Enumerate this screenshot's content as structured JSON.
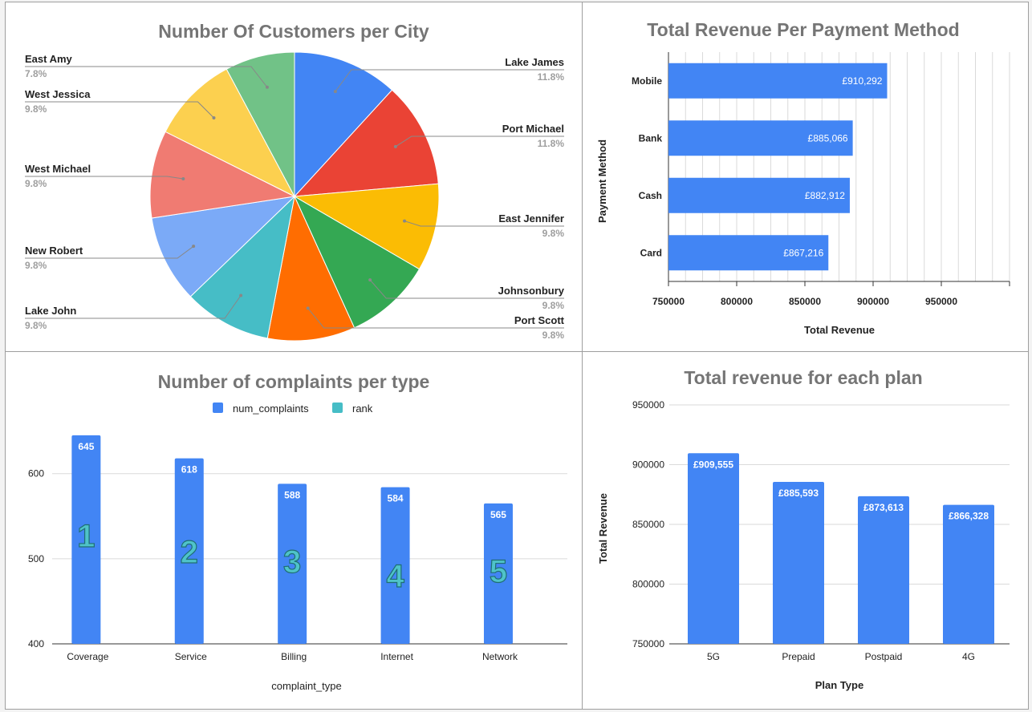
{
  "colors": {
    "blue": "#4285f4",
    "teal": "#46bdc6",
    "pie": [
      "#4285f4",
      "#ea4335",
      "#fbbc04",
      "#34a853",
      "#ff6d01",
      "#46bdc6",
      "#7baaf7",
      "#f07b72",
      "#fcd04f",
      "#71c287"
    ]
  },
  "chart_data": [
    {
      "type": "pie",
      "title": "Number Of Customers per City",
      "slices": [
        {
          "label": "Lake James",
          "percent_label": "11.8%",
          "value": 11.8
        },
        {
          "label": "Port Michael",
          "percent_label": "11.8%",
          "value": 11.8
        },
        {
          "label": "East Jennifer",
          "percent_label": "9.8%",
          "value": 9.8
        },
        {
          "label": "Johnsonbury",
          "percent_label": "9.8%",
          "value": 9.8
        },
        {
          "label": "Port Scott",
          "percent_label": "9.8%",
          "value": 9.8
        },
        {
          "label": "Lake John",
          "percent_label": "9.8%",
          "value": 9.8
        },
        {
          "label": "New Robert",
          "percent_label": "9.8%",
          "value": 9.8
        },
        {
          "label": "West Michael",
          "percent_label": "9.8%",
          "value": 9.8
        },
        {
          "label": "West Jessica",
          "percent_label": "9.8%",
          "value": 9.8
        },
        {
          "label": "East Amy",
          "percent_label": "7.8%",
          "value": 7.8
        }
      ]
    },
    {
      "type": "bar",
      "orientation": "horizontal",
      "title": "Total Revenue Per Payment Method",
      "xlabel": "Total Revenue",
      "ylabel": "Payment Method",
      "xlim": [
        750000,
        1000000
      ],
      "xticks": [
        "750000",
        "800000",
        "850000",
        "900000",
        "950000"
      ],
      "categories": [
        "Mobile",
        "Bank",
        "Cash",
        "Card"
      ],
      "values": [
        910292,
        885066,
        882912,
        867216
      ],
      "data_labels": [
        "£910,292",
        "£885,066",
        "£882,912",
        "£867,216"
      ]
    },
    {
      "type": "bar",
      "title": "Number of complaints per type",
      "xlabel": "complaint_type",
      "ylabel": "",
      "ylim": [
        400,
        660
      ],
      "yticks": [
        "400",
        "500",
        "600"
      ],
      "legend": "top",
      "series": [
        {
          "name": "num_complaints",
          "values": [
            645,
            618,
            588,
            584,
            565
          ]
        },
        {
          "name": "rank",
          "values": [
            1,
            2,
            3,
            4,
            5
          ]
        }
      ],
      "categories": [
        "Coverage",
        "Service",
        "Billing",
        "Internet",
        "Network"
      ],
      "data_labels": [
        "645",
        "618",
        "588",
        "584",
        "565"
      ],
      "rank_labels": [
        "1",
        "2",
        "3",
        "4",
        "5"
      ]
    },
    {
      "type": "bar",
      "title": "Total revenue for each plan",
      "xlabel": "Plan Type",
      "ylabel": "Total Revenue",
      "ylim": [
        750000,
        950000
      ],
      "yticks": [
        "750000",
        "800000",
        "850000",
        "900000",
        "950000"
      ],
      "categories": [
        "5G",
        "Prepaid",
        "Postpaid",
        "4G"
      ],
      "values": [
        909555,
        885593,
        873613,
        866328
      ],
      "data_labels": [
        "£909,555",
        "£885,593",
        "£873,613",
        "£866,328"
      ]
    }
  ]
}
